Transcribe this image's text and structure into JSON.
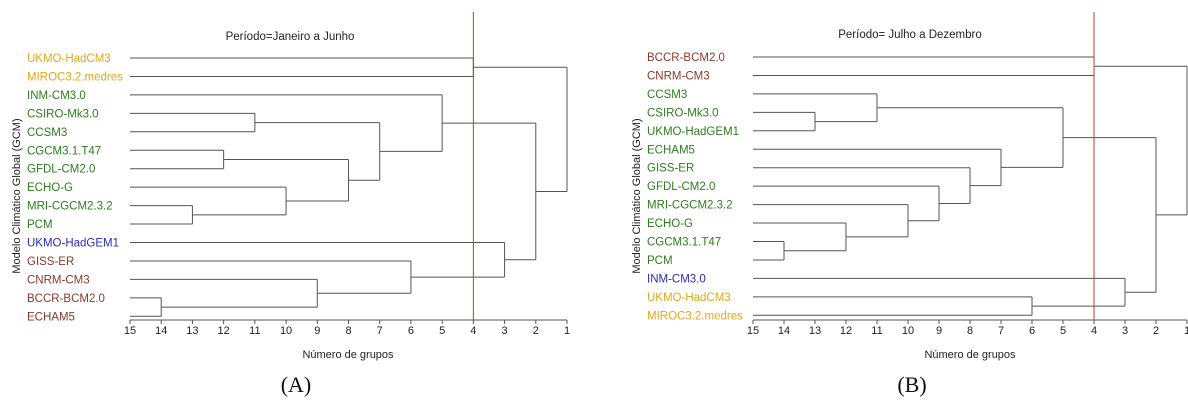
{
  "colors": {
    "orange": "#e6a817",
    "green": "#2e7d1e",
    "blue": "#2b2bb5",
    "brown": "#8b3a2a",
    "cut_line": "#c0392b",
    "links": "#555555"
  },
  "chart_data": [
    {
      "type": "dendrogram",
      "panel_label": "(A)",
      "title": "Período=Janeiro a Junho",
      "xlabel": "Número de grupos",
      "ylabel": "Modelo Climático Global (GCM)",
      "xlim": [
        15,
        1
      ],
      "xticks": [
        15,
        14,
        13,
        12,
        11,
        10,
        9,
        8,
        7,
        6,
        5,
        4,
        3,
        2,
        1
      ],
      "cut_at": 4,
      "leaves": [
        {
          "name": "UKMO-HadCM3",
          "group": "orange"
        },
        {
          "name": "MIROC3.2.medres",
          "group": "orange"
        },
        {
          "name": "INM-CM3.0",
          "group": "green"
        },
        {
          "name": "CSIRO-Mk3.0",
          "group": "green"
        },
        {
          "name": "CCSM3",
          "group": "green"
        },
        {
          "name": "CGCM3.1.T47",
          "group": "green"
        },
        {
          "name": "GFDL-CM2.0",
          "group": "green"
        },
        {
          "name": "ECHO-G",
          "group": "green"
        },
        {
          "name": "MRI-CGCM2.3.2",
          "group": "green"
        },
        {
          "name": "PCM",
          "group": "green"
        },
        {
          "name": "UKMO-HadGEM1",
          "group": "blue"
        },
        {
          "name": "GISS-ER",
          "group": "brown"
        },
        {
          "name": "CNRM-CM3",
          "group": "brown"
        },
        {
          "name": "BCCR-BCM2.0",
          "group": "brown"
        },
        {
          "name": "ECHAM5",
          "group": "brown"
        }
      ],
      "merges": [
        {
          "a": 13,
          "b": 14,
          "at": 14
        },
        {
          "a": 8,
          "b": 9,
          "at": 13
        },
        {
          "a": 5,
          "b": 6,
          "at": 12
        },
        {
          "a": 3,
          "b": 4,
          "at": 11
        },
        {
          "a": 7,
          "b": 16,
          "at": 10
        },
        {
          "a": 12,
          "b": 15,
          "at": 9
        },
        {
          "a": 17,
          "b": 19,
          "at": 8
        },
        {
          "a": 18,
          "b": 21,
          "at": 7
        },
        {
          "a": 11,
          "b": 20,
          "at": 6
        },
        {
          "a": 2,
          "b": 22,
          "at": 5
        },
        {
          "a": 0,
          "b": 1,
          "at": 4
        },
        {
          "a": 10,
          "b": 23,
          "at": 3
        },
        {
          "a": 24,
          "b": 26,
          "at": 2
        },
        {
          "a": 25,
          "b": 27,
          "at": 1
        }
      ]
    },
    {
      "type": "dendrogram",
      "panel_label": "(B)",
      "title": "Período= Julho a Dezembro",
      "xlabel": "Número de grupos",
      "ylabel": "Modelo Climático Global (GCM)",
      "xlim": [
        15,
        1
      ],
      "xticks": [
        15,
        14,
        13,
        12,
        11,
        10,
        9,
        8,
        7,
        6,
        5,
        4,
        3,
        2,
        1
      ],
      "cut_at": 4,
      "leaves": [
        {
          "name": "BCCR-BCM2.0",
          "group": "brown"
        },
        {
          "name": "CNRM-CM3",
          "group": "brown"
        },
        {
          "name": "CCSM3",
          "group": "green"
        },
        {
          "name": "CSIRO-Mk3.0",
          "group": "green"
        },
        {
          "name": "UKMO-HadGEM1",
          "group": "green"
        },
        {
          "name": "ECHAM5",
          "group": "green"
        },
        {
          "name": "GISS-ER",
          "group": "green"
        },
        {
          "name": "GFDL-CM2.0",
          "group": "green"
        },
        {
          "name": "MRI-CGCM2.3.2",
          "group": "green"
        },
        {
          "name": "ECHO-G",
          "group": "green"
        },
        {
          "name": "CGCM3.1.T47",
          "group": "green"
        },
        {
          "name": "PCM",
          "group": "green"
        },
        {
          "name": "INM-CM3.0",
          "group": "blue"
        },
        {
          "name": "UKMO-HadCM3",
          "group": "orange"
        },
        {
          "name": "MIROC3.2.medres",
          "group": "orange"
        }
      ],
      "merges": [
        {
          "a": 10,
          "b": 11,
          "at": 14
        },
        {
          "a": 3,
          "b": 4,
          "at": 13
        },
        {
          "a": 9,
          "b": 15,
          "at": 12
        },
        {
          "a": 2,
          "b": 16,
          "at": 11
        },
        {
          "a": 8,
          "b": 17,
          "at": 10
        },
        {
          "a": 7,
          "b": 19,
          "at": 9
        },
        {
          "a": 6,
          "b": 20,
          "at": 8
        },
        {
          "a": 5,
          "b": 21,
          "at": 7
        },
        {
          "a": 13,
          "b": 14,
          "at": 6
        },
        {
          "a": 18,
          "b": 22,
          "at": 5
        },
        {
          "a": 0,
          "b": 1,
          "at": 4
        },
        {
          "a": 12,
          "b": 23,
          "at": 3
        },
        {
          "a": 24,
          "b": 26,
          "at": 2
        },
        {
          "a": 25,
          "b": 27,
          "at": 1
        }
      ]
    }
  ]
}
